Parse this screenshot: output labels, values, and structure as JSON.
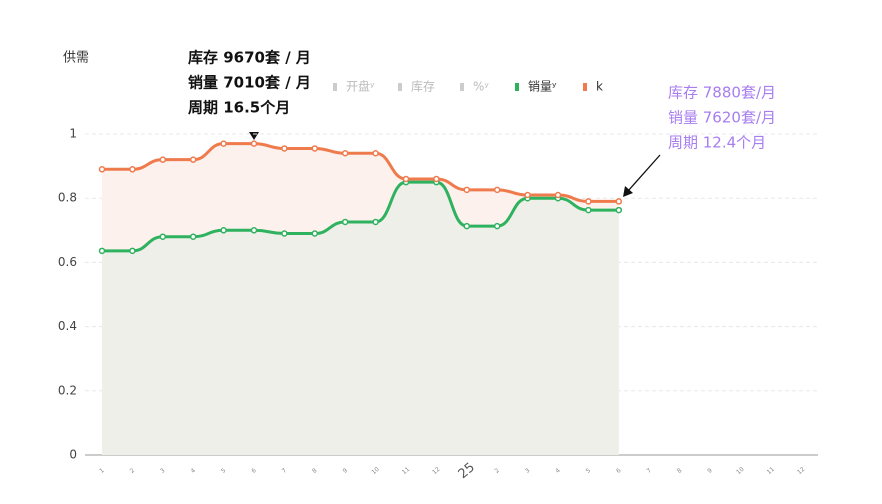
{
  "chart_data": {
    "type": "line",
    "y_label": "供需",
    "categories": [
      "1",
      "2",
      "3",
      "4",
      "5",
      "6",
      "7",
      "8",
      "9",
      "10",
      "11",
      "12",
      "25",
      "2",
      "3",
      "4",
      "5",
      "6",
      "7",
      "8",
      "9",
      "10",
      "11",
      "12"
    ],
    "ylim": [
      0,
      1
    ],
    "yticks": [
      0,
      0.2,
      0.4,
      0.6,
      0.8,
      1
    ],
    "grid": true,
    "series": [
      {
        "name": "开盘ʸ",
        "color": "#cccccc",
        "hidden": true
      },
      {
        "name": "库存",
        "color": "#cccccc",
        "hidden": true
      },
      {
        "name": "%ʸ",
        "color": "#cccccc",
        "hidden": true
      },
      {
        "name": "销量ʸ",
        "color": "#2fb25f",
        "area_color": "#efefe9",
        "values": [
          0.636,
          0.636,
          0.68,
          0.68,
          0.7,
          0.7,
          0.69,
          0.69,
          0.726,
          0.726,
          0.85,
          0.85,
          0.713,
          0.713,
          0.8,
          0.8,
          0.763,
          0.763,
          null,
          null,
          null,
          null,
          null,
          null
        ]
      },
      {
        "name": "k",
        "color": "#ef7a4c",
        "area_color": "#fdf1ed",
        "values": [
          0.89,
          0.89,
          0.92,
          0.92,
          0.97,
          0.97,
          0.955,
          0.955,
          0.94,
          0.94,
          0.86,
          0.86,
          0.826,
          0.826,
          0.81,
          0.81,
          0.79,
          0.79,
          null,
          null,
          null,
          null,
          null,
          null
        ]
      }
    ],
    "annotations": [
      {
        "lines": [
          "库存 9670套 / 月",
          "销量 7010套 / 月",
          "周期 16.5个月"
        ],
        "color": "#111111"
      },
      {
        "lines": [
          "库存 7880套/月",
          "销量 7620套/月",
          "周期 12.4个月"
        ],
        "color": "#a77df0"
      }
    ]
  }
}
